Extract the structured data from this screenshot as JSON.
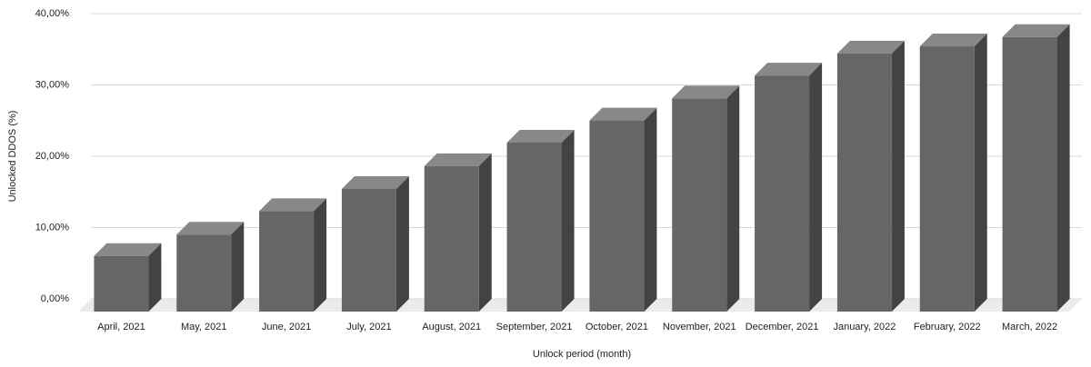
{
  "chart_data": {
    "type": "bar3d",
    "x_label": "Unlock period (month)",
    "y_label": "Unlocked DDOS (%)",
    "categories": [
      "April, 2021",
      "May, 2021",
      "June, 2021",
      "July, 2021",
      "August, 2021",
      "September, 2021",
      "October, 2021",
      "November, 2021",
      "December, 2021",
      "January, 2022",
      "February, 2022",
      "March, 2022"
    ],
    "values": [
      7.8,
      10.8,
      14.1,
      17.2,
      20.4,
      23.7,
      26.8,
      29.9,
      33.1,
      36.2,
      37.2,
      38.5
    ],
    "color": "#666666",
    "ylim": [
      0,
      40
    ],
    "yticks": [
      {
        "value": 0,
        "label": "0,00%"
      },
      {
        "value": 10,
        "label": "10,00%"
      },
      {
        "value": 20,
        "label": "20,00%"
      },
      {
        "value": 30,
        "label": "30,00%"
      },
      {
        "value": 40,
        "label": "40,00%"
      }
    ],
    "grid": true
  }
}
